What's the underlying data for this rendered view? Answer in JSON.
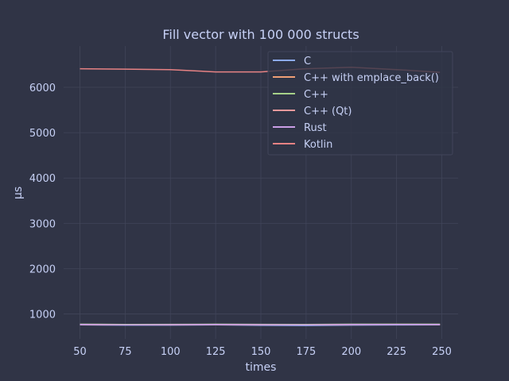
{
  "colors": {
    "background": "#303446",
    "plot_background": "#303446",
    "grid": "#414559",
    "text": "#c6d0f5",
    "legend_background": "#303446",
    "legend_border": "#414559"
  },
  "chart_data": {
    "type": "line",
    "title": "Fill vector with 100 000 structs",
    "xlabel": "times",
    "ylabel": "μs",
    "xlim": [
      41,
      259
    ],
    "ylim": [
      450,
      6910
    ],
    "xticks": [
      50,
      75,
      100,
      125,
      150,
      175,
      200,
      225,
      250
    ],
    "yticks": [
      1000,
      2000,
      3000,
      4000,
      5000,
      6000
    ],
    "grid": true,
    "legend_position": "top-right",
    "x": [
      50,
      75,
      100,
      125,
      150,
      175,
      200,
      225,
      249
    ],
    "series": [
      {
        "name": "C",
        "color": "#8caaee",
        "values": [
          760,
          755,
          755,
          760,
          750,
          745,
          755,
          758,
          760
        ]
      },
      {
        "name": "C++ with emplace_back()",
        "color": "#ef9f76",
        "values": [
          770,
          765,
          768,
          770,
          768,
          765,
          770,
          772,
          770
        ]
      },
      {
        "name": "C++",
        "color": "#a6d189",
        "values": [
          775,
          770,
          772,
          775,
          772,
          770,
          775,
          776,
          775
        ]
      },
      {
        "name": "C++ (Qt)",
        "color": "#ea999c",
        "values": [
          765,
          760,
          762,
          765,
          762,
          760,
          765,
          766,
          765
        ]
      },
      {
        "name": "Rust",
        "color": "#ca9ee6",
        "values": [
          768,
          762,
          765,
          768,
          765,
          762,
          768,
          770,
          768
        ]
      },
      {
        "name": "Kotlin",
        "color": "#e78284",
        "values": [
          6410,
          6400,
          6390,
          6340,
          6340,
          6410,
          6440,
          6390,
          6330
        ]
      }
    ]
  }
}
